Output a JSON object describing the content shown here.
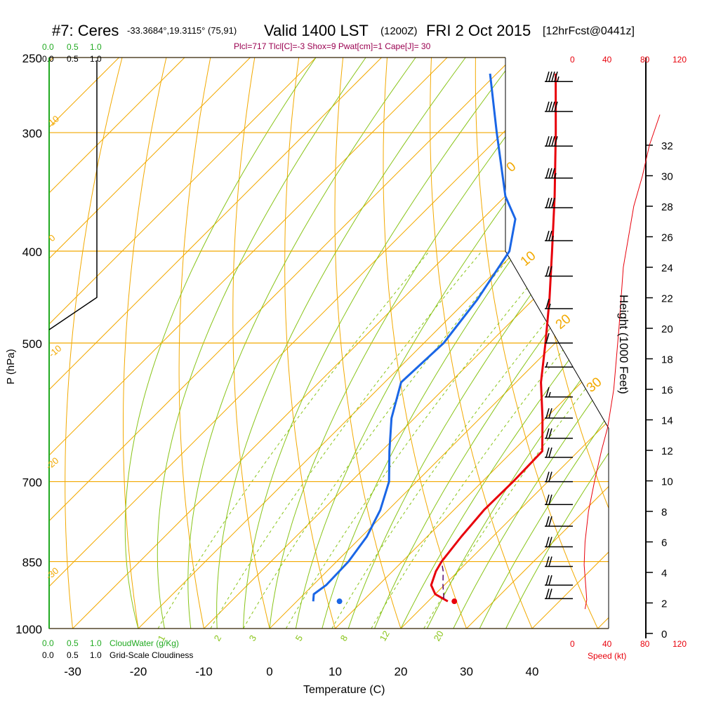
{
  "header": {
    "station": "#7: Ceres",
    "location": "-33.3684°,19.3115° (75,91)",
    "valid": "Valid 1400 LST",
    "zulu": "(1200Z)",
    "date": "FRI 2 Oct 2015",
    "forecast": "[12hrFcst@0441z]",
    "indices": "Plcl=717 Tlcl[C]=-3 Shox=9 Pwat[cm]=1 Cape[J]= 30"
  },
  "axes": {
    "x_title": "Temperature (C)",
    "y_title": "P (hPa)",
    "height_title": "Height (1000 Feet)",
    "speed_title": "Speed (kt)",
    "cloud_water_title": "CloudWater (g/Kg)",
    "cloudiness_title": "Grid-Scale Cloudiness"
  },
  "colors": {
    "isotherm": "#f2a900",
    "dry_adiabat": "#f2a900",
    "moist_adiabat": "#88c418",
    "mixing_ratio": "#88c418",
    "temperature": "#e8000b",
    "dewpoint": "#1a66e6",
    "parcel": "#5a0a6e",
    "speed": "#e8000b",
    "cloud_water": "#22aa22",
    "indices": "#9a0050"
  },
  "chart_data": {
    "type": "skew-t",
    "x_ticks": [
      "-30",
      "-20",
      "-10",
      "0",
      "10",
      "20",
      "30",
      "40"
    ],
    "x_tick_values": [
      -30,
      -20,
      -10,
      0,
      10,
      20,
      30,
      40
    ],
    "xlim": [
      -34,
      36
    ],
    "pressure_ticks": [
      "250",
      "300",
      "400",
      "500",
      "700",
      "850",
      "1000"
    ],
    "pressure_values": [
      250,
      300,
      400,
      500,
      700,
      850,
      1000
    ],
    "ylim": [
      1000,
      250
    ],
    "height_ticks": [
      "0",
      "2",
      "4",
      "6",
      "8",
      "10",
      "12",
      "14",
      "16",
      "18",
      "20",
      "22",
      "24",
      "26",
      "28",
      "30",
      "32"
    ],
    "speed_ticks_top": [
      "0",
      "40",
      "80",
      "120"
    ],
    "speed_ticks_bottom": [
      "0",
      "40",
      "80",
      "120"
    ],
    "cloud_water_ticks": [
      "0.0",
      "0.5",
      "1.0"
    ],
    "cloudiness_ticks": [
      "0.0",
      "0.5",
      "1.0"
    ],
    "mixing_ratio_labels": [
      "1",
      "2",
      "3",
      "5",
      "8",
      "12",
      "20"
    ],
    "dry_adiabat_labels": [
      "10",
      "0",
      "-10",
      "-20",
      "-30",
      "0",
      "10",
      "20",
      "30"
    ],
    "temperature": [
      {
        "p": 936,
        "t": 23.0
      },
      {
        "p": 920,
        "t": 20.0
      },
      {
        "p": 900,
        "t": 18.0
      },
      {
        "p": 870,
        "t": 16.6
      },
      {
        "p": 850,
        "t": 16.0
      },
      {
        "p": 800,
        "t": 15.2
      },
      {
        "p": 750,
        "t": 14.6
      },
      {
        "p": 700,
        "t": 14.7
      },
      {
        "p": 650,
        "t": 14.5
      },
      {
        "p": 600,
        "t": 9.5
      },
      {
        "p": 550,
        "t": 3.8
      },
      {
        "p": 500,
        "t": -1.5
      },
      {
        "p": 450,
        "t": -7.5
      },
      {
        "p": 400,
        "t": -14.5
      },
      {
        "p": 350,
        "t": -22.5
      },
      {
        "p": 300,
        "t": -32.0
      },
      {
        "p": 260,
        "t": -41.0
      }
    ],
    "dewpoint": [
      {
        "p": 936,
        "t": 2.5
      },
      {
        "p": 920,
        "t": 1.5
      },
      {
        "p": 900,
        "t": 2.0
      },
      {
        "p": 850,
        "t": 1.8
      },
      {
        "p": 800,
        "t": 0.8
      },
      {
        "p": 750,
        "t": -1.2
      },
      {
        "p": 700,
        "t": -4.2
      },
      {
        "p": 650,
        "t": -8.8
      },
      {
        "p": 600,
        "t": -13.5
      },
      {
        "p": 550,
        "t": -17.5
      },
      {
        "p": 500,
        "t": -17.0
      },
      {
        "p": 450,
        "t": -18.5
      },
      {
        "p": 400,
        "t": -21.0
      },
      {
        "p": 370,
        "t": -25.0
      },
      {
        "p": 350,
        "t": -30.0
      },
      {
        "p": 300,
        "t": -41.0
      },
      {
        "p": 260,
        "t": -51.0
      }
    ],
    "parcel": [
      {
        "p": 930,
        "t": 22.0
      },
      {
        "p": 900,
        "t": 19.8
      },
      {
        "p": 870,
        "t": 17.7
      },
      {
        "p": 850,
        "t": 16.0
      }
    ],
    "surface_temperature": {
      "p": 936,
      "t": 24.0
    },
    "surface_dewpoint": {
      "p": 936,
      "t": 6.5
    },
    "speed_profile": [
      {
        "h": 1.6,
        "s": 14
      },
      {
        "h": 2.2,
        "s": 16
      },
      {
        "h": 3.0,
        "s": 15
      },
      {
        "h": 4.5,
        "s": 13
      },
      {
        "h": 6.0,
        "s": 14
      },
      {
        "h": 8.0,
        "s": 18
      },
      {
        "h": 10.0,
        "s": 25
      },
      {
        "h": 12.0,
        "s": 33
      },
      {
        "h": 13.5,
        "s": 40
      },
      {
        "h": 16.0,
        "s": 47
      },
      {
        "h": 20.0,
        "s": 53
      },
      {
        "h": 24.0,
        "s": 58
      },
      {
        "h": 28.0,
        "s": 70
      },
      {
        "h": 30.0,
        "s": 80
      },
      {
        "h": 32.0,
        "s": 88
      },
      {
        "h": 34.0,
        "s": 100
      }
    ],
    "wind_barbs": [
      {
        "p": 265,
        "kt": 45
      },
      {
        "p": 285,
        "kt": 40
      },
      {
        "p": 310,
        "kt": 40
      },
      {
        "p": 335,
        "kt": 35
      },
      {
        "p": 360,
        "kt": 30
      },
      {
        "p": 390,
        "kt": 25
      },
      {
        "p": 425,
        "kt": 20
      },
      {
        "p": 460,
        "kt": 15
      },
      {
        "p": 500,
        "kt": 10
      },
      {
        "p": 530,
        "kt": 5
      },
      {
        "p": 570,
        "kt": 15
      },
      {
        "p": 600,
        "kt": 20
      },
      {
        "p": 630,
        "kt": 20
      },
      {
        "p": 660,
        "kt": 20
      },
      {
        "p": 700,
        "kt": 20
      },
      {
        "p": 740,
        "kt": 20
      },
      {
        "p": 780,
        "kt": 20
      },
      {
        "p": 820,
        "kt": 20
      },
      {
        "p": 860,
        "kt": 20
      },
      {
        "p": 900,
        "kt": 20
      },
      {
        "p": 930,
        "kt": 20
      }
    ]
  }
}
